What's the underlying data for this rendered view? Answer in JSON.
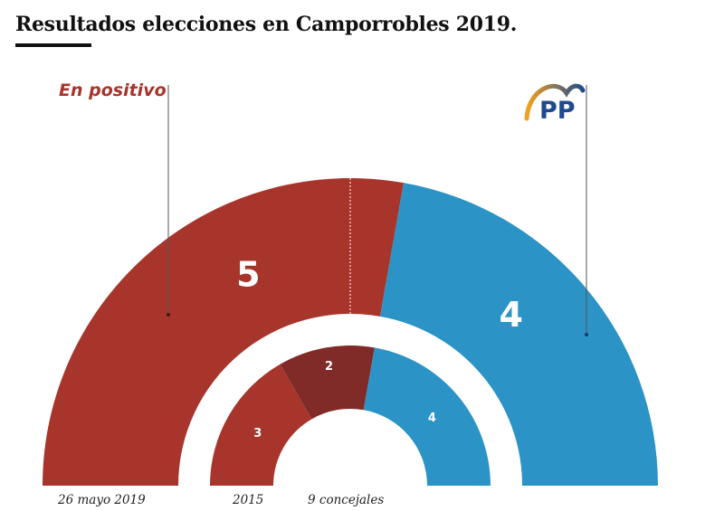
{
  "title": "Resultados elecciones en Camporrobles 2019.",
  "colors": {
    "en_positivo": "#a7352c",
    "en_positivo_dark": "#812b28",
    "pp": "#2b93c6",
    "title": "#111111",
    "pp_logo_arc_start": "#f4a21d",
    "pp_logo_arc_end": "#1f4a8f",
    "pp_logo_text": "#1f4a8f"
  },
  "logo": {
    "icon": "pp-logo-icon",
    "text": "PP"
  },
  "chart_data": {
    "type": "pie",
    "shape": "half-donut",
    "total_label": "9 concejales",
    "parties": [
      {
        "name": "En positivo",
        "color": "#a7352c"
      },
      {
        "name": "PP",
        "color": "#2b93c6"
      }
    ],
    "rings": [
      {
        "label": "26 mayo 2019",
        "segments": [
          {
            "party": "En positivo",
            "value": 5,
            "color": "#a7352c"
          },
          {
            "party": "PP",
            "value": 4,
            "color": "#2b93c6"
          }
        ]
      },
      {
        "label": "2015",
        "segments": [
          {
            "party": "En positivo",
            "value": 3,
            "color": "#a7352c"
          },
          {
            "party": "",
            "value": 2,
            "color": "#812b28"
          },
          {
            "party": "PP",
            "value": 4,
            "color": "#2b93c6"
          }
        ]
      }
    ]
  }
}
